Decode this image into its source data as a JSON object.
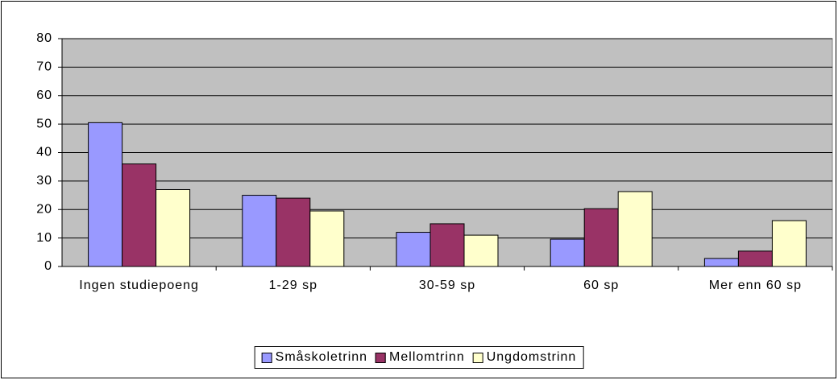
{
  "chart_data": {
    "type": "bar",
    "categories": [
      "Ingen studiepoeng",
      "1-29 sp",
      "30-59 sp",
      "60 sp",
      "Mer enn 60 sp"
    ],
    "series": [
      {
        "name": "Småskoletrinn",
        "color": "#9999ff",
        "values": [
          50.5,
          25,
          12,
          9.6,
          2.8
        ]
      },
      {
        "name": "Mellomtrinn",
        "color": "#993366",
        "values": [
          36,
          24,
          15,
          20.3,
          5.4
        ]
      },
      {
        "name": "Ungdomstrinn",
        "color": "#ffffcc",
        "values": [
          27,
          19.5,
          11,
          26.3,
          16.1
        ]
      }
    ],
    "ylim": [
      0,
      80
    ],
    "yticks": [
      0,
      10,
      20,
      30,
      40,
      50,
      60,
      70,
      80
    ],
    "grid": true,
    "plot_background": "#c0c0c0",
    "legend": "bottom"
  }
}
